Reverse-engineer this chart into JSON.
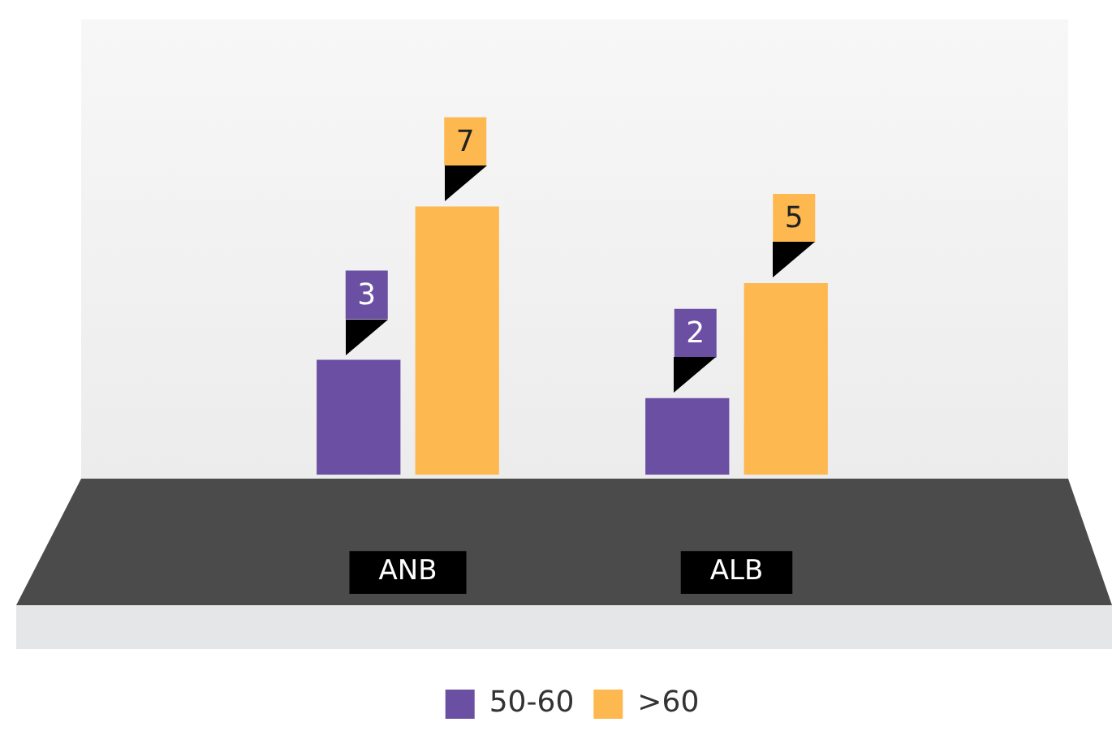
{
  "chart_data": {
    "type": "bar",
    "categories": [
      "ANB",
      "ALB"
    ],
    "series": [
      {
        "name": "50-60",
        "color": "#6b4fa3",
        "values": [
          3,
          2
        ]
      },
      {
        "name": ">60",
        "color": "#fdb84f",
        "values": [
          7,
          5
        ]
      }
    ],
    "data_labels": true,
    "legend": "bottom",
    "grid": false
  }
}
